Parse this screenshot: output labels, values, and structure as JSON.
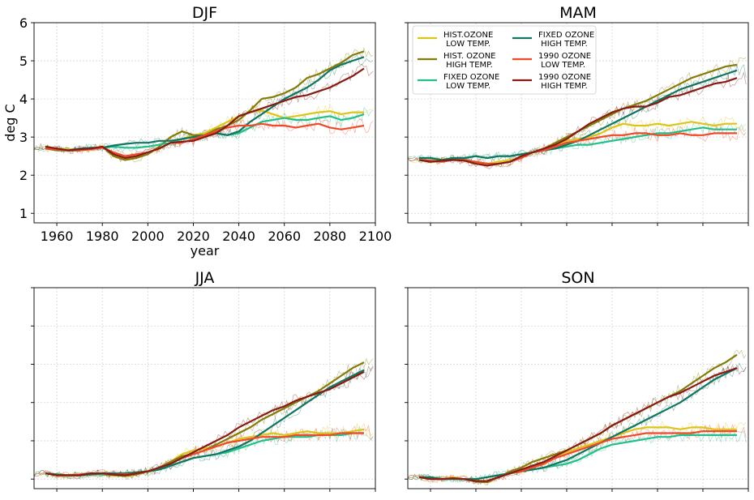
{
  "chart_data": {
    "type": "line",
    "legend": {
      "placement": "top-left",
      "panel": "MAM",
      "columns": 2
    },
    "grid": true,
    "series_styles": [
      {
        "key": "hist_low",
        "label_lines": [
          "HIST.OZONE",
          " LOW TEMP."
        ],
        "color": "#ddc41c"
      },
      {
        "key": "hist_high",
        "label_lines": [
          "HIST. OZONE",
          " HIGH TEMP."
        ],
        "color": "#857a0c"
      },
      {
        "key": "fixed_low",
        "label_lines": [
          "FIXED OZONE",
          " LOW TEMP."
        ],
        "color": "#23bf8a"
      },
      {
        "key": "fixed_high",
        "label_lines": [
          "FIXED OZONE",
          " HIGH TEMP."
        ],
        "color": "#127560"
      },
      {
        "key": "o1990_low",
        "label_lines": [
          "1990 OZONE",
          " LOW TEMP."
        ],
        "color": "#ee4a2a"
      },
      {
        "key": "o1990_high",
        "label_lines": [
          "1990 OZONE",
          " HIGH TEMP."
        ],
        "color": "#851c14"
      }
    ],
    "panels": [
      {
        "title": "DJF",
        "xlabel": "year",
        "ylabel": "deg C",
        "show_xtick_labels": true,
        "show_ytick_labels": true,
        "xlim": [
          1950,
          2100
        ],
        "ylim": [
          0.75,
          6.0
        ],
        "x_ticks": [
          1960,
          1980,
          2000,
          2020,
          2040,
          2060,
          2080,
          2100
        ],
        "y_ticks": [
          1,
          2,
          3,
          4,
          5,
          6
        ],
        "x": [
          1955,
          1960,
          1965,
          1970,
          1975,
          1980,
          1985,
          1990,
          1995,
          2000,
          2005,
          2010,
          2015,
          2020,
          2025,
          2030,
          2035,
          2040,
          2045,
          2050,
          2055,
          2060,
          2065,
          2070,
          2075,
          2080,
          2085,
          2090,
          2095
        ],
        "series": {
          "hist_low": [
            2.75,
            2.7,
            2.68,
            2.68,
            2.7,
            2.75,
            2.55,
            2.45,
            2.5,
            2.6,
            2.7,
            2.85,
            2.95,
            3.05,
            3.1,
            3.25,
            3.4,
            3.55,
            3.65,
            3.7,
            3.6,
            3.5,
            3.55,
            3.6,
            3.65,
            3.68,
            3.6,
            3.65,
            3.65
          ],
          "hist_high": [
            2.7,
            2.65,
            2.65,
            2.65,
            2.68,
            2.75,
            2.5,
            2.4,
            2.45,
            2.55,
            2.75,
            3.0,
            3.15,
            3.05,
            3.05,
            3.2,
            3.3,
            3.45,
            3.7,
            4.0,
            4.05,
            4.15,
            4.3,
            4.55,
            4.65,
            4.8,
            4.95,
            5.15,
            5.25
          ],
          "fixed_low": [
            2.7,
            2.7,
            2.65,
            2.7,
            2.72,
            2.72,
            2.75,
            2.72,
            2.72,
            2.75,
            2.8,
            2.85,
            2.95,
            3.0,
            3.05,
            3.1,
            3.05,
            3.1,
            3.25,
            3.4,
            3.45,
            3.5,
            3.45,
            3.45,
            3.5,
            3.55,
            3.45,
            3.5,
            3.6
          ],
          "fixed_high": [
            2.7,
            2.7,
            2.65,
            2.7,
            2.72,
            2.72,
            2.78,
            2.82,
            2.85,
            2.85,
            2.9,
            2.9,
            2.95,
            3.0,
            3.05,
            3.1,
            3.05,
            3.15,
            3.4,
            3.6,
            3.8,
            4.0,
            4.15,
            4.3,
            4.5,
            4.75,
            4.9,
            5.0,
            5.1
          ],
          "o1990_low": [
            2.7,
            2.68,
            2.65,
            2.65,
            2.68,
            2.72,
            2.6,
            2.5,
            2.55,
            2.6,
            2.7,
            2.85,
            2.85,
            2.95,
            3.05,
            3.15,
            3.25,
            3.3,
            3.3,
            3.35,
            3.3,
            3.3,
            3.25,
            3.3,
            3.35,
            3.25,
            3.2,
            3.25,
            3.3
          ],
          "o1990_high": [
            2.75,
            2.7,
            2.65,
            2.68,
            2.7,
            2.75,
            2.55,
            2.45,
            2.5,
            2.6,
            2.7,
            2.85,
            2.88,
            2.9,
            3.0,
            3.1,
            3.3,
            3.55,
            3.65,
            3.75,
            3.85,
            3.95,
            4.05,
            4.1,
            4.2,
            4.3,
            4.45,
            4.6,
            4.8
          ]
        }
      },
      {
        "title": "MAM",
        "xlabel": "",
        "ylabel": "",
        "show_xtick_labels": false,
        "show_ytick_labels": false,
        "xlim": [
          1950,
          2100
        ],
        "ylim": [
          0.75,
          6.0
        ],
        "x_ticks": [
          1960,
          1980,
          2000,
          2020,
          2040,
          2060,
          2080,
          2100
        ],
        "y_ticks": [
          1,
          2,
          3,
          4,
          5,
          6
        ],
        "x": [
          1955,
          1960,
          1965,
          1970,
          1975,
          1980,
          1985,
          1990,
          1995,
          2000,
          2005,
          2010,
          2015,
          2020,
          2025,
          2030,
          2035,
          2040,
          2045,
          2050,
          2055,
          2060,
          2065,
          2070,
          2075,
          2080,
          2085,
          2090,
          2095
        ],
        "series": {
          "hist_low": [
            2.4,
            2.38,
            2.4,
            2.45,
            2.4,
            2.35,
            2.3,
            2.35,
            2.4,
            2.45,
            2.6,
            2.7,
            2.8,
            2.9,
            2.95,
            3.0,
            3.1,
            3.25,
            3.35,
            3.3,
            3.3,
            3.35,
            3.3,
            3.35,
            3.4,
            3.35,
            3.3,
            3.35,
            3.35
          ],
          "hist_high": [
            2.4,
            2.35,
            2.38,
            2.45,
            2.4,
            2.35,
            2.3,
            2.3,
            2.35,
            2.5,
            2.6,
            2.7,
            2.85,
            3.0,
            3.15,
            3.3,
            3.45,
            3.6,
            3.75,
            3.85,
            3.95,
            4.1,
            4.25,
            4.4,
            4.55,
            4.65,
            4.75,
            4.85,
            4.9
          ],
          "fixed_low": [
            2.45,
            2.45,
            2.4,
            2.45,
            2.45,
            2.5,
            2.45,
            2.5,
            2.5,
            2.55,
            2.6,
            2.65,
            2.7,
            2.75,
            2.8,
            2.8,
            2.85,
            2.9,
            2.95,
            3.0,
            3.05,
            3.1,
            3.1,
            3.15,
            3.2,
            3.25,
            3.2,
            3.2,
            3.2
          ],
          "fixed_high": [
            2.45,
            2.45,
            2.4,
            2.45,
            2.45,
            2.5,
            2.45,
            2.5,
            2.5,
            2.55,
            2.6,
            2.65,
            2.7,
            2.8,
            2.9,
            3.05,
            3.2,
            3.35,
            3.5,
            3.65,
            3.8,
            3.95,
            4.1,
            4.25,
            4.35,
            4.45,
            4.55,
            4.65,
            4.75
          ],
          "o1990_low": [
            2.4,
            2.38,
            2.35,
            2.4,
            2.4,
            2.35,
            2.3,
            2.3,
            2.35,
            2.45,
            2.6,
            2.65,
            2.75,
            2.85,
            2.9,
            2.95,
            3.0,
            3.05,
            3.05,
            3.1,
            3.1,
            3.05,
            3.05,
            3.1,
            3.05,
            3.05,
            3.1,
            3.1,
            3.1
          ],
          "o1990_high": [
            2.4,
            2.35,
            2.38,
            2.4,
            2.38,
            2.3,
            2.25,
            2.3,
            2.35,
            2.5,
            2.6,
            2.7,
            2.8,
            2.95,
            3.15,
            3.35,
            3.5,
            3.65,
            3.75,
            3.8,
            3.8,
            3.9,
            4.05,
            4.1,
            4.2,
            4.3,
            4.4,
            4.45,
            4.55
          ]
        }
      },
      {
        "title": "JJA",
        "xlabel": "",
        "ylabel": "",
        "show_xtick_labels": false,
        "show_ytick_labels": false,
        "xlim": [
          1950,
          2100
        ],
        "ylim": [
          0.75,
          6.0
        ],
        "x_ticks": [
          1960,
          1980,
          2000,
          2020,
          2040,
          2060,
          2080,
          2100
        ],
        "y_ticks": [
          1,
          2,
          3,
          4,
          5,
          6
        ],
        "x": [
          1955,
          1960,
          1965,
          1970,
          1975,
          1980,
          1985,
          1990,
          1995,
          2000,
          2005,
          2010,
          2015,
          2020,
          2025,
          2030,
          2035,
          2040,
          2045,
          2050,
          2055,
          2060,
          2065,
          2070,
          2075,
          2080,
          2085,
          2090,
          2095
        ],
        "series": {
          "hist_low": [
            1.15,
            1.1,
            1.08,
            1.1,
            1.15,
            1.15,
            1.1,
            1.1,
            1.15,
            1.2,
            1.3,
            1.45,
            1.65,
            1.75,
            1.8,
            1.85,
            1.95,
            2.05,
            2.1,
            2.15,
            2.2,
            2.15,
            2.2,
            2.25,
            2.2,
            2.2,
            2.2,
            2.25,
            2.3
          ],
          "hist_high": [
            1.15,
            1.1,
            1.1,
            1.1,
            1.15,
            1.12,
            1.1,
            1.08,
            1.12,
            1.2,
            1.3,
            1.45,
            1.6,
            1.65,
            1.75,
            1.9,
            2.05,
            2.2,
            2.35,
            2.55,
            2.7,
            2.85,
            3.0,
            3.15,
            3.3,
            3.5,
            3.7,
            3.9,
            4.05
          ],
          "fixed_low": [
            1.15,
            1.12,
            1.1,
            1.1,
            1.12,
            1.12,
            1.15,
            1.15,
            1.15,
            1.2,
            1.25,
            1.35,
            1.45,
            1.55,
            1.6,
            1.65,
            1.7,
            1.8,
            1.9,
            2.0,
            2.05,
            2.1,
            2.1,
            2.1,
            2.15,
            2.15,
            2.15,
            2.2,
            2.2
          ],
          "fixed_high": [
            1.15,
            1.12,
            1.1,
            1.1,
            1.12,
            1.15,
            1.15,
            1.15,
            1.18,
            1.2,
            1.25,
            1.35,
            1.45,
            1.55,
            1.6,
            1.65,
            1.75,
            1.85,
            2.0,
            2.2,
            2.4,
            2.6,
            2.8,
            3.0,
            3.2,
            3.4,
            3.55,
            3.7,
            3.85
          ],
          "o1990_low": [
            1.15,
            1.1,
            1.1,
            1.12,
            1.15,
            1.15,
            1.12,
            1.12,
            1.15,
            1.2,
            1.3,
            1.4,
            1.55,
            1.65,
            1.75,
            1.85,
            1.95,
            2.0,
            2.05,
            2.1,
            2.1,
            2.1,
            2.15,
            2.15,
            2.15,
            2.15,
            2.2,
            2.2,
            2.2
          ],
          "o1990_high": [
            1.15,
            1.1,
            1.1,
            1.1,
            1.15,
            1.15,
            1.12,
            1.1,
            1.15,
            1.2,
            1.3,
            1.4,
            1.55,
            1.7,
            1.85,
            2.0,
            2.15,
            2.35,
            2.5,
            2.65,
            2.8,
            2.9,
            3.05,
            3.15,
            3.25,
            3.35,
            3.5,
            3.65,
            3.8
          ]
        }
      },
      {
        "title": "SON",
        "xlabel": "",
        "ylabel": "",
        "show_xtick_labels": false,
        "show_ytick_labels": false,
        "xlim": [
          1950,
          2100
        ],
        "ylim": [
          0.75,
          6.0
        ],
        "x_ticks": [
          1960,
          1980,
          2000,
          2020,
          2040,
          2060,
          2080,
          2100
        ],
        "y_ticks": [
          1,
          2,
          3,
          4,
          5,
          6
        ],
        "x": [
          1955,
          1960,
          1965,
          1970,
          1975,
          1980,
          1985,
          1990,
          1995,
          2000,
          2005,
          2010,
          2015,
          2020,
          2025,
          2030,
          2035,
          2040,
          2045,
          2050,
          2055,
          2060,
          2065,
          2070,
          2075,
          2080,
          2085,
          2090,
          2095
        ],
        "series": {
          "hist_low": [
            1.05,
            1.0,
            1.0,
            1.05,
            1.0,
            0.95,
            0.95,
            1.05,
            1.15,
            1.2,
            1.3,
            1.45,
            1.6,
            1.7,
            1.8,
            1.9,
            2.0,
            2.1,
            2.2,
            2.3,
            2.35,
            2.35,
            2.35,
            2.3,
            2.35,
            2.35,
            2.3,
            2.3,
            2.3
          ],
          "hist_high": [
            1.05,
            1.0,
            1.0,
            1.02,
            1.0,
            0.93,
            0.92,
            1.05,
            1.2,
            1.3,
            1.45,
            1.55,
            1.65,
            1.75,
            1.9,
            2.05,
            2.2,
            2.4,
            2.55,
            2.7,
            2.85,
            3.0,
            3.15,
            3.3,
            3.5,
            3.7,
            3.9,
            4.05,
            4.25
          ],
          "fixed_low": [
            1.05,
            1.05,
            1.0,
            1.0,
            1.0,
            1.0,
            1.05,
            1.1,
            1.15,
            1.2,
            1.25,
            1.3,
            1.35,
            1.4,
            1.5,
            1.65,
            1.8,
            1.9,
            1.95,
            2.0,
            2.05,
            2.1,
            2.1,
            2.15,
            2.15,
            2.15,
            2.15,
            2.15,
            2.15
          ],
          "fixed_high": [
            1.05,
            1.05,
            1.0,
            1.0,
            1.0,
            1.0,
            1.05,
            1.1,
            1.15,
            1.2,
            1.25,
            1.3,
            1.4,
            1.5,
            1.65,
            1.8,
            1.95,
            2.1,
            2.25,
            2.4,
            2.55,
            2.7,
            2.85,
            3.0,
            3.2,
            3.4,
            3.6,
            3.75,
            3.9
          ],
          "o1990_low": [
            1.05,
            1.0,
            1.0,
            1.02,
            1.0,
            0.95,
            0.95,
            1.05,
            1.15,
            1.2,
            1.3,
            1.4,
            1.55,
            1.65,
            1.75,
            1.85,
            1.95,
            2.05,
            2.1,
            2.15,
            2.2,
            2.2,
            2.2,
            2.2,
            2.2,
            2.25,
            2.25,
            2.25,
            2.25
          ],
          "o1990_high": [
            1.05,
            1.0,
            1.0,
            1.02,
            1.0,
            0.95,
            0.95,
            1.05,
            1.15,
            1.25,
            1.35,
            1.45,
            1.6,
            1.75,
            1.9,
            2.05,
            2.2,
            2.4,
            2.55,
            2.7,
            2.85,
            3.0,
            3.15,
            3.25,
            3.4,
            3.55,
            3.7,
            3.8,
            3.9
          ]
        }
      }
    ]
  }
}
